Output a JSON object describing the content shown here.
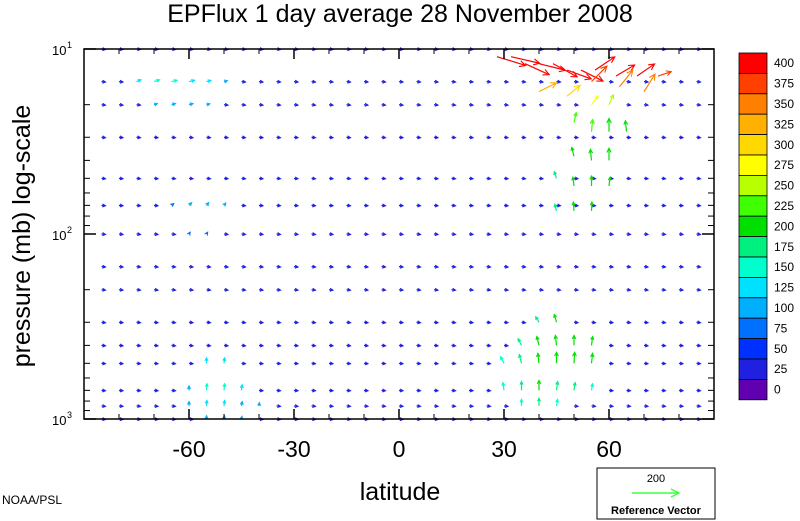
{
  "chart_data": {
    "type": "vector",
    "title": "EPFlux  1 day average  28 November 2008",
    "xlabel": "latitude",
    "ylabel": "pressure (mb)  log-scale",
    "xlim": [
      -90,
      90
    ],
    "ylim": [
      1000,
      10
    ],
    "yscale": "log",
    "xticks": [
      -60,
      -30,
      0,
      30,
      60
    ],
    "xtick_labels": [
      "-60",
      "-30",
      "0",
      "30",
      "60"
    ],
    "yticks": [
      10,
      100,
      1000
    ],
    "ytick_base": "10",
    "ytick_exponents": [
      "1",
      "2",
      "3"
    ],
    "latitudes": [
      -85,
      -80,
      -75,
      -70,
      -65,
      -60,
      -55,
      -50,
      -45,
      -40,
      -35,
      -30,
      -25,
      -20,
      -15,
      -10,
      -5,
      0,
      5,
      10,
      15,
      20,
      25,
      30,
      35,
      40,
      45,
      50,
      55,
      60,
      65,
      70,
      75,
      80,
      85
    ],
    "pressure_levels": [
      10,
      15,
      20,
      30,
      50,
      70,
      100,
      150,
      200,
      300,
      400,
      500,
      700,
      850,
      1000
    ],
    "colorbar": {
      "labels": [
        "400",
        "375",
        "350",
        "325",
        "300",
        "275",
        "250",
        "225",
        "200",
        "175",
        "150",
        "125",
        "100",
        "75",
        "50",
        "25",
        "0"
      ],
      "colors": [
        "#ff0000",
        "#ff4000",
        "#ff8000",
        "#ffb000",
        "#ffd800",
        "#ffff00",
        "#b8ff00",
        "#40ff00",
        "#00e000",
        "#00f080",
        "#00ffcc",
        "#00e0ff",
        "#00b0ff",
        "#0070ff",
        "#0030ff",
        "#2020e0",
        "#6000b0"
      ]
    },
    "reference_vector": {
      "magnitude": "200",
      "label": "Reference Vector",
      "color": "#40ff40"
    },
    "vectors": [
      {
        "lat": 28,
        "p": 11,
        "u": 130,
        "v": -40,
        "mag": 400
      },
      {
        "lat": 32,
        "p": 11,
        "u": 130,
        "v": -30,
        "mag": 400
      },
      {
        "lat": 36,
        "p": 12,
        "u": 110,
        "v": -50,
        "mag": 400
      },
      {
        "lat": 40,
        "p": 12,
        "u": 120,
        "v": -30,
        "mag": 400
      },
      {
        "lat": 44,
        "p": 12,
        "u": 110,
        "v": -60,
        "mag": 400
      },
      {
        "lat": 48,
        "p": 13,
        "u": 110,
        "v": -40,
        "mag": 400
      },
      {
        "lat": 52,
        "p": 13,
        "u": 100,
        "v": -50,
        "mag": 400
      },
      {
        "lat": 56,
        "p": 13,
        "u": 90,
        "v": 60,
        "mag": 400
      },
      {
        "lat": 62,
        "p": 14,
        "u": 85,
        "v": 50,
        "mag": 400
      },
      {
        "lat": 68,
        "p": 14,
        "u": 80,
        "v": 55,
        "mag": 400
      },
      {
        "lat": 74,
        "p": 14,
        "u": 60,
        "v": 20,
        "mag": 380
      },
      {
        "lat": 55,
        "p": 15,
        "u": 70,
        "v": 70,
        "mag": 380
      },
      {
        "lat": 63,
        "p": 16,
        "u": 60,
        "v": 75,
        "mag": 360
      },
      {
        "lat": 70,
        "p": 17,
        "u": 50,
        "v": 80,
        "mag": 360
      },
      {
        "lat": 40,
        "p": 17,
        "u": 80,
        "v": 40,
        "mag": 330
      },
      {
        "lat": 48,
        "p": 18,
        "u": 60,
        "v": 50,
        "mag": 300
      },
      {
        "lat": 55,
        "p": 20,
        "u": 30,
        "v": 40,
        "mag": 280
      },
      {
        "lat": 60,
        "p": 20,
        "u": 20,
        "v": 45,
        "mag": 250
      },
      {
        "lat": 50,
        "p": 25,
        "u": 10,
        "v": 45,
        "mag": 220
      },
      {
        "lat": 55,
        "p": 28,
        "u": 5,
        "v": 55,
        "mag": 220
      },
      {
        "lat": 60,
        "p": 28,
        "u": 0,
        "v": 60,
        "mag": 210
      },
      {
        "lat": 65,
        "p": 28,
        "u": -5,
        "v": 50,
        "mag": 200
      },
      {
        "lat": 50,
        "p": 38,
        "u": -10,
        "v": 40,
        "mag": 200
      },
      {
        "lat": 55,
        "p": 40,
        "u": -5,
        "v": 50,
        "mag": 200
      },
      {
        "lat": 60,
        "p": 40,
        "u": 0,
        "v": 55,
        "mag": 200
      },
      {
        "lat": 45,
        "p": 50,
        "u": -10,
        "v": 30,
        "mag": 180
      },
      {
        "lat": 50,
        "p": 55,
        "u": -5,
        "v": 40,
        "mag": 200
      },
      {
        "lat": 55,
        "p": 55,
        "u": 0,
        "v": 45,
        "mag": 200
      },
      {
        "lat": 60,
        "p": 55,
        "u": 5,
        "v": 40,
        "mag": 190
      },
      {
        "lat": 45,
        "p": 75,
        "u": -8,
        "v": 30,
        "mag": 180
      },
      {
        "lat": 50,
        "p": 75,
        "u": -3,
        "v": 40,
        "mag": 190
      },
      {
        "lat": 55,
        "p": 75,
        "u": 2,
        "v": 40,
        "mag": 190
      },
      {
        "lat": 40,
        "p": 300,
        "u": -15,
        "v": 25,
        "mag": 180
      },
      {
        "lat": 45,
        "p": 300,
        "u": -10,
        "v": 35,
        "mag": 190
      },
      {
        "lat": 35,
        "p": 400,
        "u": -15,
        "v": 30,
        "mag": 170
      },
      {
        "lat": 40,
        "p": 400,
        "u": -10,
        "v": 40,
        "mag": 190
      },
      {
        "lat": 45,
        "p": 400,
        "u": -5,
        "v": 45,
        "mag": 200
      },
      {
        "lat": 50,
        "p": 400,
        "u": 0,
        "v": 45,
        "mag": 200
      },
      {
        "lat": 55,
        "p": 400,
        "u": 5,
        "v": 40,
        "mag": 190
      },
      {
        "lat": 30,
        "p": 500,
        "u": -15,
        "v": 30,
        "mag": 160
      },
      {
        "lat": 35,
        "p": 500,
        "u": -10,
        "v": 40,
        "mag": 180
      },
      {
        "lat": 40,
        "p": 500,
        "u": -5,
        "v": 45,
        "mag": 200
      },
      {
        "lat": 45,
        "p": 500,
        "u": 0,
        "v": 50,
        "mag": 210
      },
      {
        "lat": 50,
        "p": 500,
        "u": 3,
        "v": 50,
        "mag": 210
      },
      {
        "lat": 55,
        "p": 500,
        "u": 5,
        "v": 45,
        "mag": 200
      },
      {
        "lat": 30,
        "p": 700,
        "u": -5,
        "v": 35,
        "mag": 160
      },
      {
        "lat": 35,
        "p": 700,
        "u": 0,
        "v": 40,
        "mag": 180
      },
      {
        "lat": 40,
        "p": 700,
        "u": 0,
        "v": 45,
        "mag": 190
      },
      {
        "lat": 45,
        "p": 700,
        "u": 5,
        "v": 40,
        "mag": 180
      },
      {
        "lat": 50,
        "p": 700,
        "u": 5,
        "v": 35,
        "mag": 170
      },
      {
        "lat": 55,
        "p": 700,
        "u": 5,
        "v": 30,
        "mag": 150
      },
      {
        "lat": 35,
        "p": 850,
        "u": 0,
        "v": 30,
        "mag": 160
      },
      {
        "lat": 40,
        "p": 850,
        "u": 0,
        "v": 35,
        "mag": 170
      },
      {
        "lat": 45,
        "p": 850,
        "u": 5,
        "v": 30,
        "mag": 160
      },
      {
        "lat": -75,
        "p": 15,
        "u": 20,
        "v": 8,
        "mag": 130
      },
      {
        "lat": -70,
        "p": 15,
        "u": 25,
        "v": 8,
        "mag": 140
      },
      {
        "lat": -65,
        "p": 15,
        "u": 25,
        "v": 6,
        "mag": 140
      },
      {
        "lat": -60,
        "p": 15,
        "u": 25,
        "v": 6,
        "mag": 130
      },
      {
        "lat": -55,
        "p": 15,
        "u": 20,
        "v": 5,
        "mag": 120
      },
      {
        "lat": -50,
        "p": 15,
        "u": 15,
        "v": 4,
        "mag": 100
      },
      {
        "lat": -70,
        "p": 20,
        "u": 15,
        "v": 5,
        "mag": 100
      },
      {
        "lat": -65,
        "p": 20,
        "u": 18,
        "v": 5,
        "mag": 110
      },
      {
        "lat": -60,
        "p": 20,
        "u": 18,
        "v": 5,
        "mag": 110
      },
      {
        "lat": -55,
        "p": 20,
        "u": 15,
        "v": 4,
        "mag": 90
      },
      {
        "lat": -65,
        "p": 70,
        "u": 10,
        "v": 8,
        "mag": 80
      },
      {
        "lat": -60,
        "p": 70,
        "u": 12,
        "v": 12,
        "mag": 100
      },
      {
        "lat": -55,
        "p": 70,
        "u": 10,
        "v": 12,
        "mag": 100
      },
      {
        "lat": -50,
        "p": 70,
        "u": 8,
        "v": 10,
        "mag": 90
      },
      {
        "lat": -60,
        "p": 100,
        "u": 5,
        "v": 8,
        "mag": 70
      },
      {
        "lat": -55,
        "p": 100,
        "u": 5,
        "v": 8,
        "mag": 70
      },
      {
        "lat": -55,
        "p": 500,
        "u": 0,
        "v": 25,
        "mag": 130
      },
      {
        "lat": -50,
        "p": 500,
        "u": 3,
        "v": 25,
        "mag": 130
      },
      {
        "lat": -60,
        "p": 700,
        "u": 0,
        "v": 20,
        "mag": 110
      },
      {
        "lat": -55,
        "p": 700,
        "u": 2,
        "v": 30,
        "mag": 140
      },
      {
        "lat": -50,
        "p": 700,
        "u": 3,
        "v": 30,
        "mag": 140
      },
      {
        "lat": -45,
        "p": 700,
        "u": 3,
        "v": 25,
        "mag": 120
      },
      {
        "lat": -60,
        "p": 850,
        "u": 0,
        "v": 20,
        "mag": 110
      },
      {
        "lat": -55,
        "p": 850,
        "u": 2,
        "v": 25,
        "mag": 130
      },
      {
        "lat": -50,
        "p": 850,
        "u": 3,
        "v": 25,
        "mag": 130
      },
      {
        "lat": -45,
        "p": 850,
        "u": 3,
        "v": 20,
        "mag": 110
      },
      {
        "lat": -40,
        "p": 850,
        "u": 2,
        "v": 15,
        "mag": 90
      },
      {
        "lat": -55,
        "p": 1000,
        "u": 0,
        "v": 15,
        "mag": 100
      },
      {
        "lat": -50,
        "p": 1000,
        "u": 2,
        "v": 15,
        "mag": 100
      },
      {
        "lat": -45,
        "p": 1000,
        "u": 2,
        "v": 12,
        "mag": 90
      }
    ]
  },
  "colorbar_title": "",
  "credit": "NOAA/PSL"
}
